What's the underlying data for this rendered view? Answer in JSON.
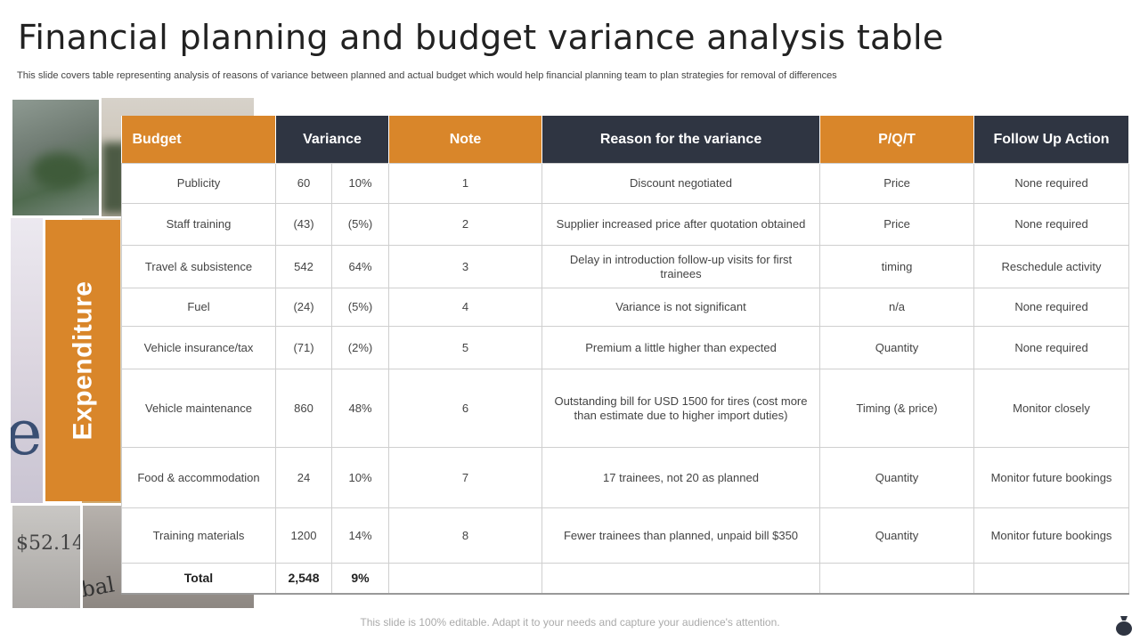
{
  "title": "Financial planning and budget variance analysis table",
  "subtitle": "This slide covers table representing analysis of reasons of variance between planned and actual budget which would help financial planning team to plan strategies for removal of differences",
  "side_label": "Expenditure",
  "headers": {
    "budget": "Budget",
    "variance": "Variance",
    "note": "Note",
    "reason": "Reason for the variance",
    "pqt": "P/Q/T",
    "follow": "Follow Up Action"
  },
  "rows": [
    {
      "budget": "Publicity",
      "value": "60",
      "pct": "10%",
      "note": "1",
      "reason": "Discount negotiated",
      "pqt": "Price",
      "action": "None required"
    },
    {
      "budget": "Staff training",
      "value": "(43)",
      "pct": "(5%)",
      "note": "2",
      "reason": "Supplier increased price after quotation obtained",
      "pqt": "Price",
      "action": "None required"
    },
    {
      "budget": "Travel  & subsistence",
      "value": "542",
      "pct": "64%",
      "note": "3",
      "reason": "Delay in introduction follow-up visits for first trainees",
      "pqt": "timing",
      "action": "Reschedule activity"
    },
    {
      "budget": "Fuel",
      "value": "(24)",
      "pct": "(5%)",
      "note": "4",
      "reason": "Variance is not significant",
      "pqt": "n/a",
      "action": "None required"
    },
    {
      "budget": "Vehicle insurance/tax",
      "value": "(71)",
      "pct": "(2%)",
      "note": "5",
      "reason": "Premium a little higher than expected",
      "pqt": "Quantity",
      "action": "None required"
    },
    {
      "budget": "Vehicle maintenance",
      "value": "860",
      "pct": "48%",
      "note": "6",
      "reason": "Outstanding bill for USD 1500 for tires (cost more than estimate due to higher import duties)",
      "pqt": "Timing (& price)",
      "action": "Monitor closely"
    },
    {
      "budget": "Food & accommodation",
      "value": "24",
      "pct": "10%",
      "note": "7",
      "reason": "17 trainees, not 20 as planned",
      "pqt": "Quantity",
      "action": "Monitor future bookings"
    },
    {
      "budget": "Training  materials",
      "value": "1200",
      "pct": "14%",
      "note": "8",
      "reason": "Fewer trainees than planned, unpaid bill $350",
      "pqt": "Quantity",
      "action": "Monitor future bookings"
    }
  ],
  "total": {
    "label": "Total",
    "value": "2,548",
    "pct": "9%"
  },
  "footer": "This slide is 100% editable. Adapt it to your needs and capture your audience's attention.",
  "photo_text": {
    "p3": "es",
    "p5": "$52.14",
    "p6": "global crisis, wa"
  },
  "colors": {
    "orange": "#d9862a",
    "dark": "#2f3542"
  }
}
